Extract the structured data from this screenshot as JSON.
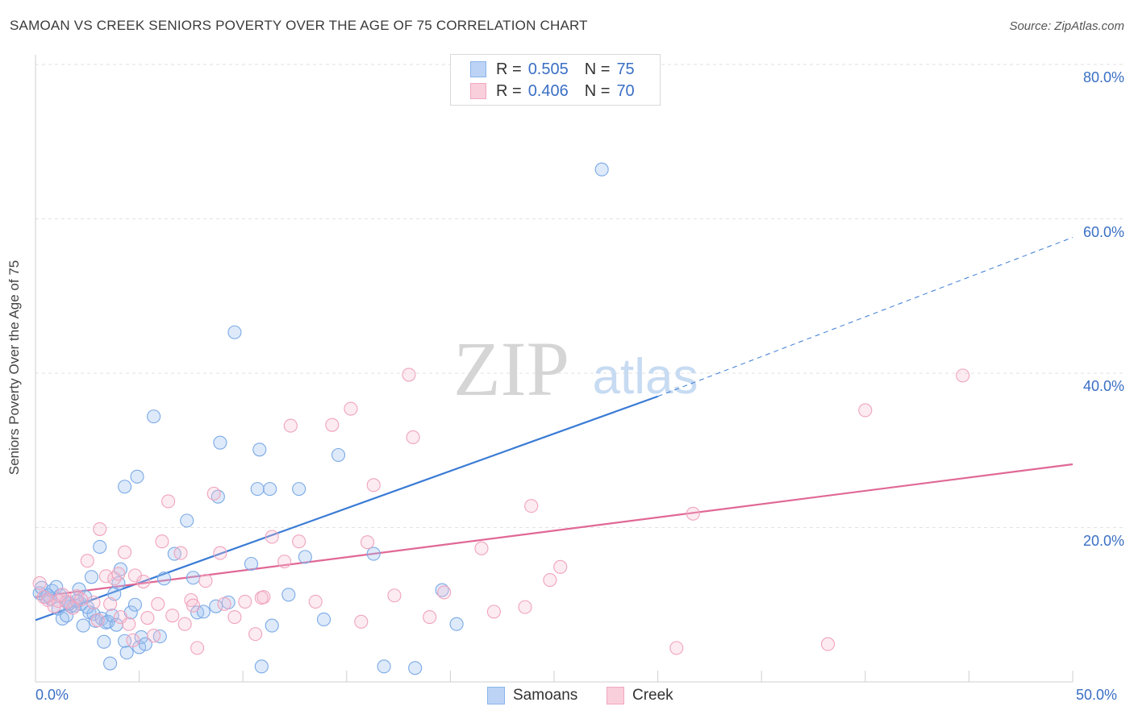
{
  "title": "SAMOAN VS CREEK SENIORS POVERTY OVER THE AGE OF 75 CORRELATION CHART",
  "source": "Source: ZipAtlas.com",
  "watermark": {
    "zip": "ZIP",
    "atlas": "atlas"
  },
  "legend_top": [
    {
      "r_label": "R =",
      "r_value": "0.505",
      "n_label": "N =",
      "n_value": "75",
      "color": "#8ab4ea",
      "fill": "#bcd3f5"
    },
    {
      "r_label": "R =",
      "r_value": "0.406",
      "n_label": "N =",
      "n_value": "70",
      "color": "#f2a7bf",
      "fill": "#f9cfdc"
    }
  ],
  "legend_bottom": [
    "Samoans",
    "Creek"
  ],
  "colors": {
    "samoans": "#3a7bd5",
    "creek": "#e06895",
    "axis_text": "#3a6fc4",
    "grid": "#e0e0e0"
  },
  "chart_data": {
    "type": "scatter",
    "xlabel": "",
    "ylabel": "Seniors Poverty Over the Age of 75",
    "xlim": [
      0,
      50
    ],
    "ylim": [
      0,
      80
    ],
    "x_ticks_labeled": [
      "0.0%",
      "50.0%"
    ],
    "y_ticks_labeled": [
      "20.0%",
      "40.0%",
      "60.0%",
      "80.0%"
    ],
    "y_tick_values": [
      20,
      40,
      60,
      80
    ],
    "series": [
      {
        "name": "Samoans",
        "color": "#3a7bd5",
        "points": [
          [
            0.2,
            11.5
          ],
          [
            0.3,
            12.2
          ],
          [
            0.5,
            11.0
          ],
          [
            0.7,
            10.8
          ],
          [
            0.8,
            11.8
          ],
          [
            1.0,
            12.3
          ],
          [
            1.1,
            9.5
          ],
          [
            1.2,
            11.2
          ],
          [
            1.3,
            8.2
          ],
          [
            1.5,
            8.6
          ],
          [
            1.6,
            10.3
          ],
          [
            1.7,
            9.8
          ],
          [
            1.9,
            9.9
          ],
          [
            2.1,
            12.0
          ],
          [
            2.2,
            10.1
          ],
          [
            2.3,
            7.3
          ],
          [
            2.4,
            11.0
          ],
          [
            2.6,
            9.0
          ],
          [
            2.7,
            13.6
          ],
          [
            2.8,
            8.8
          ],
          [
            2.9,
            7.9
          ],
          [
            3.1,
            17.5
          ],
          [
            3.2,
            8.2
          ],
          [
            3.4,
            7.7
          ],
          [
            3.5,
            7.8
          ],
          [
            3.7,
            8.6
          ],
          [
            3.8,
            11.4
          ],
          [
            3.9,
            7.4
          ],
          [
            4.0,
            12.8
          ],
          [
            4.1,
            14.6
          ],
          [
            4.3,
            5.3
          ],
          [
            4.4,
            3.8
          ],
          [
            4.6,
            9.0
          ],
          [
            4.8,
            10.0
          ],
          [
            5.0,
            4.5
          ],
          [
            5.1,
            5.8
          ],
          [
            5.3,
            4.9
          ],
          [
            4.3,
            25.3
          ],
          [
            4.9,
            26.6
          ],
          [
            5.7,
            34.4
          ],
          [
            6.2,
            13.4
          ],
          [
            6.7,
            16.6
          ],
          [
            7.3,
            20.9
          ],
          [
            7.8,
            9.0
          ],
          [
            8.1,
            9.1
          ],
          [
            8.7,
            9.8
          ],
          [
            8.8,
            24.0
          ],
          [
            8.9,
            31.0
          ],
          [
            9.3,
            10.3
          ],
          [
            9.6,
            45.3
          ],
          [
            10.4,
            15.3
          ],
          [
            10.7,
            25.0
          ],
          [
            10.8,
            30.1
          ],
          [
            11.3,
            25.0
          ],
          [
            11.4,
            7.3
          ],
          [
            12.2,
            11.3
          ],
          [
            12.7,
            25.0
          ],
          [
            13.0,
            16.2
          ],
          [
            13.9,
            8.1
          ],
          [
            14.6,
            29.4
          ],
          [
            16.3,
            16.6
          ],
          [
            16.8,
            2.0
          ],
          [
            18.3,
            1.8
          ],
          [
            19.6,
            11.9
          ],
          [
            20.3,
            7.5
          ],
          [
            27.3,
            66.4
          ],
          [
            1.6,
            10.1
          ],
          [
            2.0,
            10.5
          ],
          [
            0.6,
            11.2
          ],
          [
            3.3,
            5.2
          ],
          [
            6.0,
            5.9
          ],
          [
            10.9,
            2.0
          ],
          [
            3.6,
            2.4
          ],
          [
            7.6,
            13.5
          ],
          [
            2.5,
            9.7
          ]
        ],
        "trend": {
          "x1": 0,
          "y1": 8.0,
          "x2": 30,
          "y2": 37.0,
          "dash_x2": 50,
          "dash_y2": 57.6
        }
      },
      {
        "name": "Creek",
        "color": "#e06895",
        "points": [
          [
            0.2,
            12.8
          ],
          [
            0.4,
            11.0
          ],
          [
            0.6,
            10.6
          ],
          [
            0.9,
            9.8
          ],
          [
            1.1,
            10.5
          ],
          [
            1.3,
            11.3
          ],
          [
            1.5,
            10.4
          ],
          [
            1.8,
            9.6
          ],
          [
            2.0,
            11.1
          ],
          [
            2.2,
            10.7
          ],
          [
            2.5,
            15.7
          ],
          [
            2.8,
            10.3
          ],
          [
            3.0,
            8.0
          ],
          [
            3.1,
            19.8
          ],
          [
            3.4,
            13.7
          ],
          [
            3.6,
            10.1
          ],
          [
            3.8,
            13.4
          ],
          [
            4.0,
            14.0
          ],
          [
            4.1,
            8.4
          ],
          [
            4.3,
            16.8
          ],
          [
            4.5,
            7.5
          ],
          [
            4.7,
            5.4
          ],
          [
            5.2,
            13.0
          ],
          [
            5.4,
            8.3
          ],
          [
            5.7,
            6.0
          ],
          [
            5.9,
            10.1
          ],
          [
            6.1,
            18.2
          ],
          [
            6.4,
            23.4
          ],
          [
            6.6,
            8.6
          ],
          [
            7.0,
            16.7
          ],
          [
            7.2,
            7.5
          ],
          [
            7.5,
            10.6
          ],
          [
            7.8,
            4.4
          ],
          [
            8.2,
            13.1
          ],
          [
            8.6,
            24.4
          ],
          [
            8.9,
            16.7
          ],
          [
            9.1,
            10.1
          ],
          [
            9.6,
            8.4
          ],
          [
            10.1,
            10.4
          ],
          [
            10.6,
            6.2
          ],
          [
            11.0,
            11.0
          ],
          [
            11.4,
            18.8
          ],
          [
            12.0,
            15.6
          ],
          [
            12.3,
            33.2
          ],
          [
            12.7,
            18.2
          ],
          [
            13.5,
            10.4
          ],
          [
            14.3,
            33.3
          ],
          [
            15.2,
            35.4
          ],
          [
            15.7,
            7.8
          ],
          [
            16.0,
            18.1
          ],
          [
            16.3,
            25.5
          ],
          [
            17.3,
            11.2
          ],
          [
            18.0,
            39.8
          ],
          [
            18.2,
            31.7
          ],
          [
            19.0,
            8.4
          ],
          [
            19.7,
            11.6
          ],
          [
            21.5,
            17.3
          ],
          [
            22.1,
            9.1
          ],
          [
            23.6,
            9.7
          ],
          [
            23.9,
            22.8
          ],
          [
            24.8,
            13.2
          ],
          [
            25.3,
            14.9
          ],
          [
            30.9,
            4.4
          ],
          [
            31.7,
            21.8
          ],
          [
            38.2,
            4.9
          ],
          [
            40.0,
            35.2
          ],
          [
            44.7,
            39.7
          ],
          [
            10.9,
            10.9
          ],
          [
            7.6,
            9.9
          ],
          [
            4.8,
            13.8
          ]
        ],
        "trend": {
          "x1": 0,
          "y1": 11.0,
          "x2": 50,
          "y2": 28.2
        }
      }
    ]
  }
}
